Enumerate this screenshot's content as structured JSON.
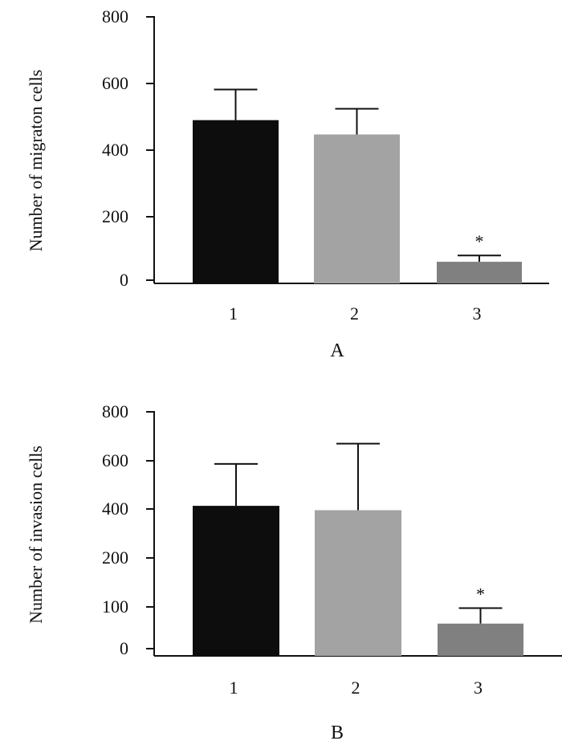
{
  "chart_data": [
    {
      "type": "bar",
      "panel_label": "A",
      "ylabel": "Number of migraton cells",
      "categories": [
        "1",
        "2",
        "3"
      ],
      "values": [
        490,
        447,
        58
      ],
      "errors": [
        92,
        77,
        20
      ],
      "bar_colors": [
        "#0d0d0d",
        "#a3a3a3",
        "#808080"
      ],
      "annotations": [
        "",
        "",
        "*"
      ],
      "yticks": [
        0,
        200,
        400,
        600,
        800
      ],
      "ylim": [
        0,
        800
      ],
      "grid": false
    },
    {
      "type": "bar",
      "panel_label": "B",
      "ylabel": "Number of invasion cells",
      "categories": [
        "1",
        "2",
        "3"
      ],
      "values": [
        413,
        395,
        60
      ],
      "errors": [
        174,
        275,
        37
      ],
      "bar_colors": [
        "#0d0d0d",
        "#a3a3a3",
        "#808080"
      ],
      "annotations": [
        "",
        "",
        "*"
      ],
      "yticks": [
        0,
        100,
        200,
        400,
        600,
        800
      ],
      "ylim": [
        0,
        800
      ],
      "grid": false
    }
  ]
}
